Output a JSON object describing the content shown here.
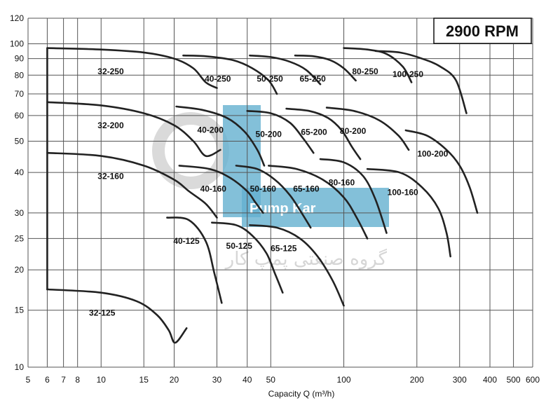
{
  "chart_data": {
    "type": "line",
    "title": "2900 RPM",
    "xlabel": "Capacity Q  (m³/h)",
    "ylabel": "",
    "xscale": "log",
    "yscale": "log",
    "xlim": [
      5,
      600
    ],
    "ylim": [
      10,
      120
    ],
    "x_ticks": [
      5,
      6,
      7,
      8,
      10,
      15,
      20,
      30,
      40,
      50,
      100,
      200,
      300,
      400,
      500,
      600
    ],
    "x_tick_labels": [
      "5",
      "6",
      "7",
      "8",
      "10",
      "15",
      "20",
      "30",
      "40",
      "50",
      "100",
      "200",
      "300",
      "400",
      "500",
      "600"
    ],
    "y_ticks": [
      10,
      15,
      20,
      25,
      30,
      40,
      50,
      60,
      70,
      80,
      90,
      100,
      120
    ],
    "y_tick_labels": [
      "10",
      "15",
      "20",
      "25",
      "30",
      "40",
      "50",
      "60",
      "70",
      "80",
      "90",
      "100",
      "120"
    ],
    "grid": true,
    "watermark": {
      "logo_text": "Pump Kar",
      "persian_text": "گروه صنعتی پمپ کار",
      "color": "#4aa3c8"
    },
    "series": [
      {
        "name": "32-250",
        "x": [
          6,
          10,
          15,
          20,
          24,
          27,
          30
        ],
        "y": [
          97,
          96,
          94,
          90,
          84,
          76,
          73
        ]
      },
      {
        "name": "32-200",
        "x": [
          6,
          10,
          15,
          20,
          24,
          27,
          31
        ],
        "y": [
          66,
          64.5,
          61,
          56,
          50,
          45,
          47
        ]
      },
      {
        "name": "32-160",
        "x": [
          6,
          10,
          15,
          20,
          23,
          27,
          30
        ],
        "y": [
          46,
          45,
          42,
          38,
          35,
          32,
          29
        ]
      },
      {
        "name": "32-125",
        "x": [
          6,
          10,
          14,
          17,
          19,
          20.2,
          22.5
        ],
        "y": [
          17.4,
          17,
          16,
          14.5,
          13,
          11.9,
          13.2
        ]
      },
      {
        "name": "40-250",
        "x": [
          21.8,
          27,
          35,
          42,
          49,
          53
        ],
        "y": [
          92,
          91.5,
          89,
          84,
          77,
          70
        ]
      },
      {
        "name": "40-200",
        "x": [
          20.4,
          26,
          33,
          39,
          44,
          47
        ],
        "y": [
          64,
          62.5,
          59,
          53.5,
          47,
          42
        ]
      },
      {
        "name": "40-160",
        "x": [
          21,
          28,
          34,
          40,
          43,
          46.5
        ],
        "y": [
          42,
          41,
          38.5,
          35,
          32.5,
          30
        ]
      },
      {
        "name": "40-125",
        "x": [
          18.7,
          23,
          27,
          29.3,
          31.4
        ],
        "y": [
          29,
          28.5,
          24.5,
          19.5,
          15.8
        ]
      },
      {
        "name": "50-250",
        "x": [
          41,
          50,
          60,
          70,
          80
        ],
        "y": [
          92,
          91,
          88,
          83,
          75
        ]
      },
      {
        "name": "50-200",
        "x": [
          40,
          50,
          60,
          68,
          75
        ],
        "y": [
          62,
          61,
          57,
          51,
          46
        ]
      },
      {
        "name": "50-160",
        "x": [
          36,
          44,
          52,
          60,
          67,
          73
        ],
        "y": [
          42,
          41,
          38,
          34,
          30,
          27
        ]
      },
      {
        "name": "50-125",
        "x": [
          28.6,
          36,
          42,
          48,
          52,
          56
        ],
        "y": [
          28,
          27.5,
          25.5,
          22.5,
          19.5,
          17
        ]
      },
      {
        "name": "65-250",
        "x": [
          63,
          75,
          88,
          100,
          112
        ],
        "y": [
          92,
          91.5,
          89,
          84,
          77
        ]
      },
      {
        "name": "65-200",
        "x": [
          58,
          72,
          86,
          98,
          108,
          117
        ],
        "y": [
          63,
          62,
          59,
          54,
          48,
          44
        ]
      },
      {
        "name": "65-160",
        "x": [
          49,
          64,
          82,
          100,
          113,
          125
        ],
        "y": [
          42,
          41,
          38,
          33.5,
          29,
          25
        ]
      },
      {
        "name": "65-125",
        "x": [
          41,
          53,
          66,
          78,
          90,
          100
        ],
        "y": [
          27.5,
          27,
          25,
          22,
          18.5,
          15.5
        ]
      },
      {
        "name": "80-250",
        "x": [
          100,
          125,
          150,
          175,
          190
        ],
        "y": [
          97,
          96,
          93,
          85,
          76
        ]
      },
      {
        "name": "80-200",
        "x": [
          85,
          110,
          140,
          168,
          185
        ],
        "y": [
          63.5,
          62,
          58,
          52,
          47
        ]
      },
      {
        "name": "80-160",
        "x": [
          80,
          100,
          120,
          135,
          150
        ],
        "y": [
          44,
          43,
          39,
          33,
          26
        ]
      },
      {
        "name": "100-250",
        "x": [
          135,
          170,
          210,
          250,
          290,
          320
        ],
        "y": [
          95,
          94,
          90,
          85,
          77,
          61
        ]
      },
      {
        "name": "100-200",
        "x": [
          180,
          220,
          265,
          300,
          330,
          355
        ],
        "y": [
          54,
          52,
          47,
          42,
          36,
          30
        ]
      },
      {
        "name": "100-160",
        "x": [
          125,
          170,
          210,
          245,
          265,
          275
        ],
        "y": [
          41,
          40,
          36,
          31,
          26,
          22
        ]
      }
    ]
  }
}
